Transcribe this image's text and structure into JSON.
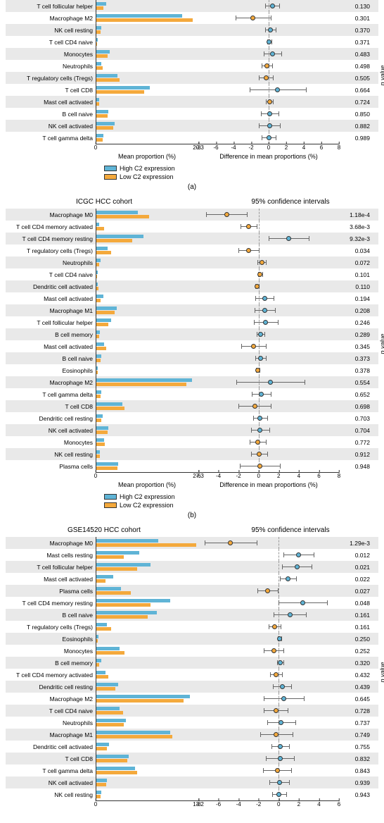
{
  "colors": {
    "high": "#5fb4d6",
    "low": "#f4a93c",
    "bg_odd": "#e9e9e9"
  },
  "legend": {
    "high": "High C2 expression",
    "low": "Low C2 expression"
  },
  "yaxis_label": "p value",
  "panels": [
    {
      "id": "a",
      "title_left": "",
      "title_right": "",
      "bar_max": 20.3,
      "ci_min": -8,
      "ci_max": 8,
      "bar_ticks": [
        0,
        20.3
      ],
      "ci_ticks": [
        -8,
        -6,
        -4,
        -2,
        0,
        2,
        4,
        6,
        8
      ],
      "bar_axis_label": "Mean proportion (%)",
      "ci_axis_label": "Difference in mean proportions (%)",
      "sub_label": "(a)",
      "rows": [
        {
          "label": "T cell follicular helper",
          "h": 2.0,
          "l": 1.4,
          "d": 0.4,
          "lo": -0.4,
          "hi": 1.2,
          "p": "0.130",
          "dc": "h"
        },
        {
          "label": "Macrophage M2",
          "h": 17.0,
          "l": 19.0,
          "d": -1.8,
          "lo": -3.8,
          "hi": 0.2,
          "p": "0.301",
          "dc": "l"
        },
        {
          "label": "NK cell resting",
          "h": 1.0,
          "l": 0.8,
          "d": 0.2,
          "lo": -0.4,
          "hi": 0.8,
          "p": "0.370",
          "dc": "h"
        },
        {
          "label": "T cell CD4 naive",
          "h": 0.3,
          "l": 0.2,
          "d": 0.05,
          "lo": -0.2,
          "hi": 0.3,
          "p": "0.371",
          "dc": "h"
        },
        {
          "label": "Monocytes",
          "h": 2.6,
          "l": 2.2,
          "d": 0.4,
          "lo": -0.6,
          "hi": 1.4,
          "p": "0.483",
          "dc": "h"
        },
        {
          "label": "Neutrophils",
          "h": 1.0,
          "l": 1.2,
          "d": -0.2,
          "lo": -0.8,
          "hi": 0.4,
          "p": "0.498",
          "dc": "l"
        },
        {
          "label": "T regulatory cells (Tregs)",
          "h": 4.2,
          "l": 4.6,
          "d": -0.3,
          "lo": -1.1,
          "hi": 0.5,
          "p": "0.505",
          "dc": "l"
        },
        {
          "label": "T cell CD8",
          "h": 10.5,
          "l": 9.5,
          "d": 1.0,
          "lo": -2.2,
          "hi": 4.2,
          "p": "0.664",
          "dc": "h"
        },
        {
          "label": "Mast cell activated",
          "h": 0.6,
          "l": 0.5,
          "d": 0.1,
          "lo": -0.3,
          "hi": 0.5,
          "p": "0.724",
          "dc": "l"
        },
        {
          "label": "B cell naive",
          "h": 2.4,
          "l": 2.2,
          "d": 0.1,
          "lo": -0.9,
          "hi": 1.1,
          "p": "0.850",
          "dc": "h"
        },
        {
          "label": "NK cell activated",
          "h": 3.6,
          "l": 3.4,
          "d": 0.1,
          "lo": -1.1,
          "hi": 1.3,
          "p": "0.882",
          "dc": "h"
        },
        {
          "label": "T cell gamma delta",
          "h": 1.4,
          "l": 1.3,
          "d": 0.02,
          "lo": -0.8,
          "hi": 0.8,
          "p": "0.989",
          "dc": "h"
        }
      ]
    },
    {
      "id": "b",
      "title_left": "ICGC HCC cohort",
      "title_right": "95% confidence intervals",
      "bar_max": 27.3,
      "ci_min": -6,
      "ci_max": 8,
      "bar_ticks": [
        0,
        27.3
      ],
      "ci_ticks": [
        -6,
        -4,
        -2,
        0,
        2,
        4,
        6,
        8
      ],
      "bar_axis_label": "Mean proportion (%)",
      "ci_axis_label": "Difference in mean proportions (%)",
      "sub_label": "(b)",
      "rows": [
        {
          "label": "Macrophage M0",
          "h": 11.0,
          "l": 14.0,
          "d": -3.2,
          "lo": -5.2,
          "hi": -1.2,
          "p": "1.18e-4",
          "dc": "l"
        },
        {
          "label": "T cell CD4 memory activated",
          "h": 0.8,
          "l": 2.0,
          "d": -1.0,
          "lo": -1.8,
          "hi": -0.2,
          "p": "3.68e-3",
          "dc": "l"
        },
        {
          "label": "T cell CD4 memory resting",
          "h": 12.5,
          "l": 9.5,
          "d": 3.0,
          "lo": 1.0,
          "hi": 5.0,
          "p": "9.32e-3",
          "dc": "h"
        },
        {
          "label": "T regulatory cells (Tregs)",
          "h": 3.0,
          "l": 4.0,
          "d": -1.0,
          "lo": -2.0,
          "hi": 0.0,
          "p": "0.034",
          "dc": "l"
        },
        {
          "label": "Neutrophils",
          "h": 1.2,
          "l": 0.8,
          "d": 0.3,
          "lo": -0.1,
          "hi": 0.7,
          "p": "0.072",
          "dc": "l"
        },
        {
          "label": "T cell CD4 naive",
          "h": 0.4,
          "l": 0.2,
          "d": 0.15,
          "lo": -0.05,
          "hi": 0.35,
          "p": "0.101",
          "dc": "l"
        },
        {
          "label": "Dendritic cell activated",
          "h": 0.3,
          "l": 0.5,
          "d": -0.15,
          "lo": -0.35,
          "hi": 0.05,
          "p": "0.110",
          "dc": "l"
        },
        {
          "label": "Mast cell activated",
          "h": 1.8,
          "l": 1.2,
          "d": 0.6,
          "lo": -0.3,
          "hi": 1.5,
          "p": "0.194",
          "dc": "h"
        },
        {
          "label": "Macrophage M1",
          "h": 5.5,
          "l": 4.8,
          "d": 0.6,
          "lo": -0.4,
          "hi": 1.6,
          "p": "0.208",
          "dc": "h"
        },
        {
          "label": "T cell follicular helper",
          "h": 4.0,
          "l": 3.2,
          "d": 0.7,
          "lo": -0.5,
          "hi": 1.9,
          "p": "0.246",
          "dc": "h"
        },
        {
          "label": "B cell memory",
          "h": 1.0,
          "l": 0.7,
          "d": 0.2,
          "lo": -0.2,
          "hi": 0.6,
          "p": "0.289",
          "dc": "h"
        },
        {
          "label": "Mast cell activated",
          "h": 2.0,
          "l": 2.6,
          "d": -0.5,
          "lo": -1.7,
          "hi": 0.7,
          "p": "0.345",
          "dc": "l"
        },
        {
          "label": "B cell naive",
          "h": 1.4,
          "l": 1.1,
          "d": 0.2,
          "lo": -0.3,
          "hi": 0.7,
          "p": "0.373",
          "dc": "h"
        },
        {
          "label": "Eosinophils",
          "h": 0.3,
          "l": 0.4,
          "d": -0.08,
          "lo": -0.28,
          "hi": 0.12,
          "p": "0.378",
          "dc": "l"
        },
        {
          "label": "Macrophage M2",
          "h": 25.5,
          "l": 24.0,
          "d": 1.2,
          "lo": -2.2,
          "hi": 4.6,
          "p": "0.554",
          "dc": "h"
        },
        {
          "label": "T cell gamma delta",
          "h": 1.4,
          "l": 1.1,
          "d": 0.25,
          "lo": -0.7,
          "hi": 1.2,
          "p": "0.652",
          "dc": "h"
        },
        {
          "label": "T cell CD8",
          "h": 7.0,
          "l": 7.5,
          "d": -0.4,
          "lo": -2.0,
          "hi": 1.2,
          "p": "0.698",
          "dc": "l"
        },
        {
          "label": "Dendritic cell resting",
          "h": 1.6,
          "l": 1.4,
          "d": 0.15,
          "lo": -0.55,
          "hi": 0.85,
          "p": "0.703",
          "dc": "h"
        },
        {
          "label": "NK cell activated",
          "h": 3.2,
          "l": 3.0,
          "d": 0.15,
          "lo": -0.75,
          "hi": 1.05,
          "p": "0.704",
          "dc": "h"
        },
        {
          "label": "Monocytes",
          "h": 2.0,
          "l": 2.2,
          "d": -0.1,
          "lo": -0.9,
          "hi": 0.7,
          "p": "0.772",
          "dc": "l"
        },
        {
          "label": "NK cell resting",
          "h": 1.0,
          "l": 0.9,
          "d": 0.05,
          "lo": -0.75,
          "hi": 0.85,
          "p": "0.912",
          "dc": "l"
        },
        {
          "label": "Plasma cells",
          "h": 5.8,
          "l": 5.6,
          "d": 0.1,
          "lo": -1.9,
          "hi": 2.1,
          "p": "0.948",
          "dc": "l"
        }
      ]
    },
    {
      "id": "c",
      "title_left": "GSE14520 HCC cohort",
      "title_right": "95% confidence intervals",
      "bar_max": 13.2,
      "ci_min": -8,
      "ci_max": 6,
      "bar_ticks": [
        0,
        13.2
      ],
      "ci_ticks": [
        -8,
        -6,
        -4,
        -2,
        0,
        2,
        4,
        6
      ],
      "bar_axis_label": "",
      "ci_axis_label": "",
      "sub_label": "",
      "rows": [
        {
          "label": "Macrophage M0",
          "h": 8.0,
          "l": 12.8,
          "d": -4.8,
          "lo": -7.4,
          "hi": -2.2,
          "p": "1.29e-3",
          "dc": "l"
        },
        {
          "label": "Mast cells resting",
          "h": 5.5,
          "l": 3.5,
          "d": 2.0,
          "lo": 0.5,
          "hi": 3.5,
          "p": "0.012",
          "dc": "h"
        },
        {
          "label": "T cell follicular helper",
          "h": 7.0,
          "l": 5.2,
          "d": 1.8,
          "lo": 0.3,
          "hi": 3.3,
          "p": "0.021",
          "dc": "h"
        },
        {
          "label": "Mast cell activated",
          "h": 2.2,
          "l": 1.2,
          "d": 0.9,
          "lo": 0.1,
          "hi": 1.7,
          "p": "0.022",
          "dc": "h"
        },
        {
          "label": "Plasma cells",
          "h": 3.2,
          "l": 4.4,
          "d": -1.1,
          "lo": -2.1,
          "hi": -0.1,
          "p": "0.027",
          "dc": "l"
        },
        {
          "label": "T cell CD4 memory resting",
          "h": 9.5,
          "l": 7.0,
          "d": 2.4,
          "lo": 0.0,
          "hi": 4.8,
          "p": "0.048",
          "dc": "h"
        },
        {
          "label": "B cell naive",
          "h": 7.8,
          "l": 6.6,
          "d": 1.1,
          "lo": -0.5,
          "hi": 2.7,
          "p": "0.161",
          "dc": "h"
        },
        {
          "label": "T regulatory cells (Tregs)",
          "h": 1.4,
          "l": 1.9,
          "d": -0.4,
          "lo": -1.0,
          "hi": 0.2,
          "p": "0.161",
          "dc": "l"
        },
        {
          "label": "Eosinophils",
          "h": 0.3,
          "l": 0.2,
          "d": 0.08,
          "lo": -0.08,
          "hi": 0.24,
          "p": "0.250",
          "dc": "h"
        },
        {
          "label": "Monocytes",
          "h": 3.0,
          "l": 3.6,
          "d": -0.5,
          "lo": -1.5,
          "hi": 0.5,
          "p": "0.252",
          "dc": "l"
        },
        {
          "label": "B cell memory",
          "h": 0.6,
          "l": 0.4,
          "d": 0.15,
          "lo": -0.15,
          "hi": 0.45,
          "p": "0.320",
          "dc": "h"
        },
        {
          "label": "T cell CD4 memory activated",
          "h": 1.2,
          "l": 1.5,
          "d": -0.25,
          "lo": -0.85,
          "hi": 0.35,
          "p": "0.432",
          "dc": "l"
        },
        {
          "label": "Dendritic cell resting",
          "h": 2.8,
          "l": 2.4,
          "d": 0.35,
          "lo": -0.55,
          "hi": 1.25,
          "p": "0.439",
          "dc": "h"
        },
        {
          "label": "Macrophage M2",
          "h": 12.0,
          "l": 11.2,
          "d": 0.5,
          "lo": -1.5,
          "hi": 2.5,
          "p": "0.645",
          "dc": "h"
        },
        {
          "label": "T cell CD4 naive",
          "h": 3.0,
          "l": 3.4,
          "d": -0.3,
          "lo": -1.5,
          "hi": 0.9,
          "p": "0.728",
          "dc": "l"
        },
        {
          "label": "Neutrophils",
          "h": 3.8,
          "l": 3.5,
          "d": 0.25,
          "lo": -1.15,
          "hi": 1.65,
          "p": "0.737",
          "dc": "h"
        },
        {
          "label": "Macrophage M1",
          "h": 9.5,
          "l": 9.8,
          "d": -0.25,
          "lo": -1.85,
          "hi": 1.35,
          "p": "0.749",
          "dc": "l"
        },
        {
          "label": "Dendritic cell activated",
          "h": 1.6,
          "l": 1.4,
          "d": 0.15,
          "lo": -0.75,
          "hi": 1.05,
          "p": "0.755",
          "dc": "h"
        },
        {
          "label": "T cell CD8",
          "h": 4.2,
          "l": 4.0,
          "d": 0.15,
          "lo": -1.25,
          "hi": 1.55,
          "p": "0.832",
          "dc": "h"
        },
        {
          "label": "T cell gamma delta",
          "h": 5.0,
          "l": 5.2,
          "d": -0.15,
          "lo": -1.55,
          "hi": 1.25,
          "p": "0.843",
          "dc": "l"
        },
        {
          "label": "NK cell activated",
          "h": 1.4,
          "l": 1.3,
          "d": 0.05,
          "lo": -0.95,
          "hi": 1.05,
          "p": "0.939",
          "dc": "h"
        },
        {
          "label": "NK cell resting",
          "h": 0.6,
          "l": 0.55,
          "d": 0.03,
          "lo": -0.67,
          "hi": 0.73,
          "p": "0.943",
          "dc": "h"
        }
      ]
    }
  ]
}
